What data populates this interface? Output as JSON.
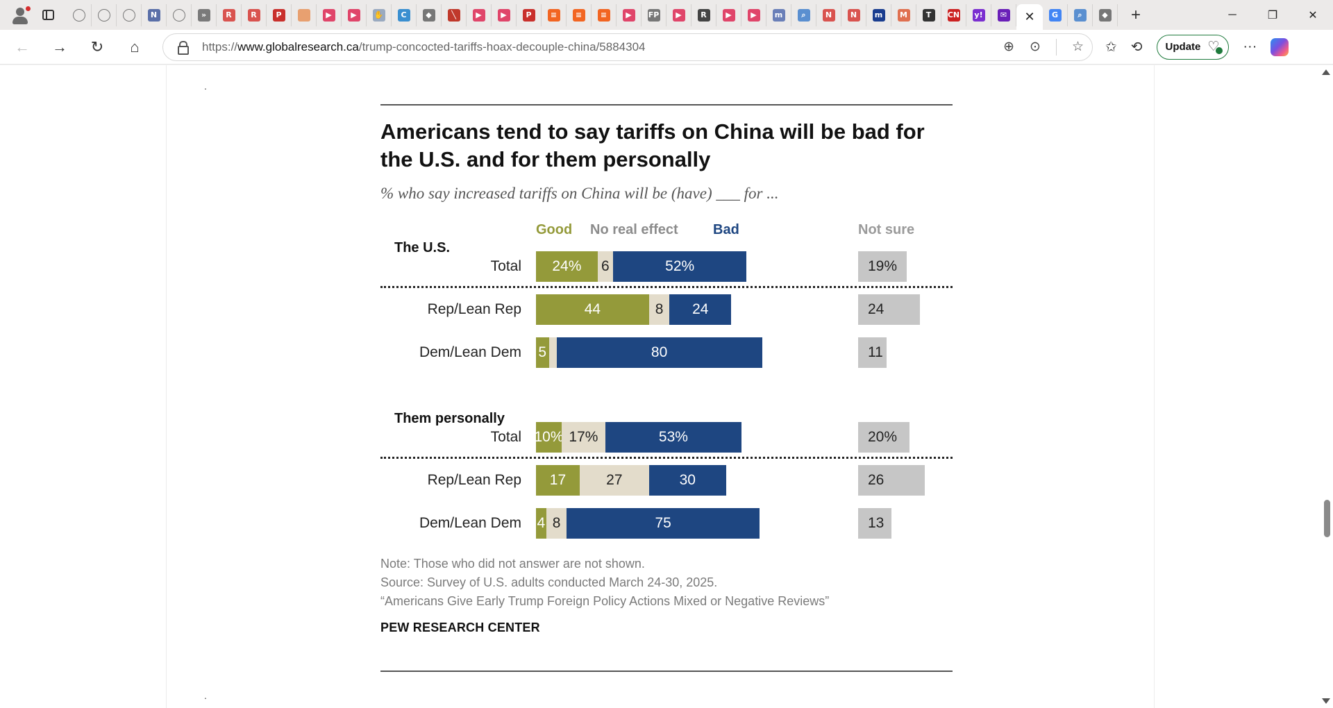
{
  "browser": {
    "url_prefix": "https://",
    "url_domain": "www.globalresearch.ca",
    "url_path": "/trump-concocted-tariffs-hoax-decouple-china/5884304",
    "update_label": "Update",
    "tabs": [
      {
        "icon": "globe-icon",
        "glyph": "",
        "color": "#777777"
      },
      {
        "icon": "globe-icon",
        "glyph": "",
        "color": "#777777"
      },
      {
        "icon": "globe-icon",
        "glyph": "",
        "color": "#777777"
      },
      {
        "icon": "news-icon",
        "glyph": "N",
        "color": "#5a6fa8"
      },
      {
        "icon": "globe-icon",
        "glyph": "",
        "color": "#777777"
      },
      {
        "icon": "media-icon",
        "glyph": "»",
        "color": "#7a7a7a"
      },
      {
        "icon": "letter-r-icon",
        "glyph": "R",
        "color": "#d9534f"
      },
      {
        "icon": "letter-r-icon",
        "glyph": "R",
        "color": "#d9534f"
      },
      {
        "icon": "pdf-icon",
        "glyph": "P",
        "color": "#c9302c"
      },
      {
        "icon": "orange-circle-icon",
        "glyph": "",
        "color": "#e8a070"
      },
      {
        "icon": "youtube-icon",
        "glyph": "▶",
        "color": "#e0456a"
      },
      {
        "icon": "youtube-icon",
        "glyph": "▶",
        "color": "#e0456a"
      },
      {
        "icon": "hand-icon",
        "glyph": "✋",
        "color": "#9aaac0"
      },
      {
        "icon": "letter-c-icon",
        "glyph": "C",
        "color": "#3a8fd0"
      },
      {
        "icon": "puzzle-icon",
        "glyph": "◆",
        "color": "#777777"
      },
      {
        "icon": "slash-icon",
        "glyph": "╲",
        "color": "#c0392b"
      },
      {
        "icon": "youtube-icon",
        "glyph": "▶",
        "color": "#e0456a"
      },
      {
        "icon": "youtube-icon",
        "glyph": "▶",
        "color": "#e0456a"
      },
      {
        "icon": "pdf-icon",
        "glyph": "P",
        "color": "#c9302c"
      },
      {
        "icon": "substack-icon",
        "glyph": "≡",
        "color": "#f26522"
      },
      {
        "icon": "substack-icon",
        "glyph": "≡",
        "color": "#f26522"
      },
      {
        "icon": "substack-icon",
        "glyph": "≡",
        "color": "#f26522"
      },
      {
        "icon": "youtube-icon",
        "glyph": "▶",
        "color": "#e0456a"
      },
      {
        "icon": "fp-icon",
        "glyph": "FP",
        "color": "#777777"
      },
      {
        "icon": "youtube-icon",
        "glyph": "▶",
        "color": "#e0456a"
      },
      {
        "icon": "letter-r-icon",
        "glyph": "R",
        "color": "#444444"
      },
      {
        "icon": "youtube-icon",
        "glyph": "▶",
        "color": "#e0456a"
      },
      {
        "icon": "youtube-icon",
        "glyph": "▶",
        "color": "#e0456a"
      },
      {
        "icon": "letter-m-icon",
        "glyph": "m",
        "color": "#6a7fb8"
      },
      {
        "icon": "search-icon",
        "glyph": "⌕",
        "color": "#5a8fd0"
      },
      {
        "icon": "letter-n-icon",
        "glyph": "N",
        "color": "#d9534f"
      },
      {
        "icon": "letter-n-icon",
        "glyph": "N",
        "color": "#d9534f"
      },
      {
        "icon": "letter-m-icon",
        "glyph": "m",
        "color": "#1a3d8f"
      },
      {
        "icon": "letter-m-icon",
        "glyph": "M",
        "color": "#e07050"
      },
      {
        "icon": "nyt-icon",
        "glyph": "T",
        "color": "#333333"
      },
      {
        "icon": "cnn-icon",
        "glyph": "CN",
        "color": "#cc2222"
      },
      {
        "icon": "yahoo-icon",
        "glyph": "y!",
        "color": "#7b2fd0"
      },
      {
        "icon": "mail-icon",
        "glyph": "✉",
        "color": "#6a1fb8"
      }
    ],
    "tabs_after": [
      {
        "icon": "google-icon",
        "glyph": "G",
        "color": "#4285f4"
      },
      {
        "icon": "search-icon",
        "glyph": "⌕",
        "color": "#5a8fd0"
      },
      {
        "icon": "puzzle-icon",
        "glyph": "◆",
        "color": "#777777"
      }
    ]
  },
  "chart_data": {
    "type": "bar",
    "title": "Americans tend to say tariffs on China will be bad for the U.S. and for them personally",
    "subtitle": "% who say increased tariffs on China will be (have) ___ for ...",
    "legend": [
      {
        "name": "Good",
        "color": "#949a3a"
      },
      {
        "name": "No real effect",
        "color": "#b8b09a"
      },
      {
        "name": "Bad",
        "color": "#1e4681"
      },
      {
        "name": "Not sure",
        "color": "#9a9a9a"
      }
    ],
    "groups": [
      {
        "name": "The U.S.",
        "rows": [
          {
            "label": "Total",
            "good": 24,
            "none": 6,
            "bad": 52,
            "notsure": 19,
            "good_label": "24%",
            "none_label": "6",
            "bad_label": "52%",
            "ns_label": "19%"
          },
          {
            "label": "Rep/Lean Rep",
            "good": 44,
            "none": 8,
            "bad": 24,
            "notsure": 24,
            "good_label": "44",
            "none_label": "8",
            "bad_label": "24",
            "ns_label": "24"
          },
          {
            "label": "Dem/Lean Dem",
            "good": 5,
            "none": 3,
            "bad": 80,
            "notsure": 11,
            "good_label": "5",
            "none_label": "",
            "bad_label": "80",
            "ns_label": "11"
          }
        ]
      },
      {
        "name": "Them personally",
        "rows": [
          {
            "label": "Total",
            "good": 10,
            "none": 17,
            "bad": 53,
            "notsure": 20,
            "good_label": "10%",
            "none_label": "17%",
            "bad_label": "53%",
            "ns_label": "20%"
          },
          {
            "label": "Rep/Lean Rep",
            "good": 17,
            "none": 27,
            "bad": 30,
            "notsure": 26,
            "good_label": "17",
            "none_label": "27",
            "bad_label": "30",
            "ns_label": "26"
          },
          {
            "label": "Dem/Lean Dem",
            "good": 4,
            "none": 8,
            "bad": 75,
            "notsure": 13,
            "good_label": "4",
            "none_label": "8",
            "bad_label": "75",
            "ns_label": "13"
          }
        ]
      }
    ],
    "notes": [
      "Note: Those who did not answer are not shown.",
      "Source: Survey of U.S. adults conducted March 24-30, 2025.",
      "“Americans Give Early Trump Foreign Policy Actions Mixed or Negative Reviews”"
    ],
    "credit": "PEW RESEARCH CENTER"
  }
}
